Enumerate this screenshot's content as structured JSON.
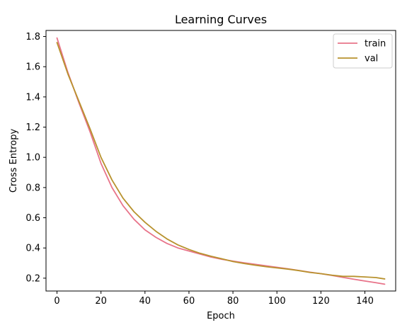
{
  "chart_data": {
    "type": "line",
    "title": "Learning Curves",
    "xlabel": "Epoch",
    "ylabel": "Cross Entropy",
    "xlim": [
      -5,
      154
    ],
    "ylim": [
      0.115,
      1.84
    ],
    "xticks": [
      0,
      20,
      40,
      60,
      80,
      100,
      120,
      140
    ],
    "yticks": [
      0.2,
      0.4,
      0.6,
      0.8,
      1.0,
      1.2,
      1.4,
      1.6,
      1.8
    ],
    "ytick_labels": [
      "0.2",
      "0.4",
      "0.6",
      "0.8",
      "1.0",
      "1.2",
      "1.4",
      "1.6",
      "1.8"
    ],
    "grid": false,
    "legend_position": "top-right",
    "series": [
      {
        "name": "train",
        "color": "#e8748a",
        "x": [
          0,
          5,
          10,
          15,
          20,
          25,
          30,
          35,
          40,
          45,
          50,
          55,
          60,
          65,
          70,
          75,
          80,
          85,
          90,
          95,
          100,
          105,
          110,
          115,
          120,
          125,
          130,
          135,
          140,
          145,
          149
        ],
        "y": [
          1.79,
          1.56,
          1.36,
          1.17,
          0.96,
          0.8,
          0.68,
          0.59,
          0.52,
          0.47,
          0.43,
          0.4,
          0.38,
          0.36,
          0.34,
          0.325,
          0.313,
          0.302,
          0.292,
          0.282,
          0.272,
          0.262,
          0.251,
          0.24,
          0.23,
          0.218,
          0.205,
          0.193,
          0.181,
          0.17,
          0.16
        ]
      },
      {
        "name": "val",
        "color": "#b8922e",
        "x": [
          0,
          5,
          10,
          15,
          20,
          25,
          30,
          35,
          40,
          45,
          50,
          55,
          60,
          65,
          70,
          75,
          80,
          85,
          90,
          95,
          100,
          105,
          110,
          115,
          120,
          125,
          130,
          135,
          140,
          145,
          149
        ],
        "y": [
          1.76,
          1.55,
          1.37,
          1.19,
          1.0,
          0.85,
          0.73,
          0.64,
          0.57,
          0.51,
          0.46,
          0.42,
          0.39,
          0.365,
          0.345,
          0.328,
          0.31,
          0.297,
          0.286,
          0.276,
          0.268,
          0.26,
          0.25,
          0.238,
          0.23,
          0.22,
          0.212,
          0.212,
          0.208,
          0.204,
          0.195
        ]
      }
    ]
  }
}
